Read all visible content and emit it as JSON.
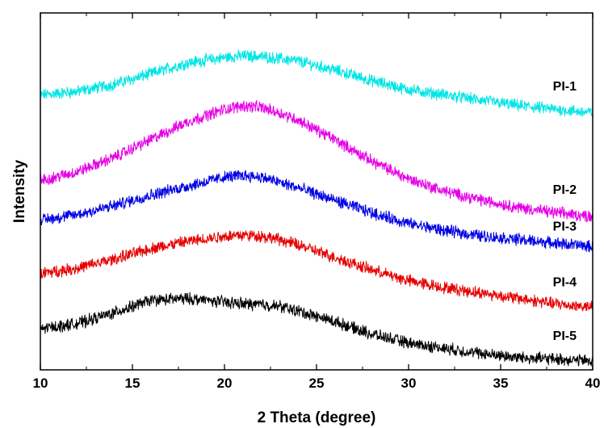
{
  "chart_data": {
    "type": "line",
    "xlabel": "2 Theta (degree)",
    "ylabel": "Intensity",
    "xlim": [
      10,
      40
    ],
    "xticks": [
      "10",
      "15",
      "20",
      "25",
      "30",
      "35",
      "40"
    ],
    "y_ticks_labeled": false,
    "grid": false,
    "legend": "inline labels at right end of each curve",
    "series": [
      {
        "name": "PI-1",
        "color": "#00e5e5",
        "x": [
          10,
          12,
          14,
          16,
          18,
          20,
          21,
          22,
          23,
          24,
          26,
          28,
          30,
          32,
          34,
          36,
          38,
          40
        ],
        "y": [
          0.77,
          0.78,
          0.8,
          0.83,
          0.86,
          0.875,
          0.88,
          0.878,
          0.872,
          0.865,
          0.84,
          0.81,
          0.785,
          0.77,
          0.755,
          0.74,
          0.73,
          0.72
        ]
      },
      {
        "name": "PI-2",
        "color": "#e600e6",
        "x": [
          10,
          12,
          14,
          16,
          18,
          20,
          21,
          22,
          23,
          24,
          26,
          28,
          30,
          32,
          34,
          36,
          38,
          40
        ],
        "y": [
          0.53,
          0.555,
          0.595,
          0.645,
          0.695,
          0.73,
          0.74,
          0.735,
          0.72,
          0.7,
          0.645,
          0.585,
          0.535,
          0.5,
          0.475,
          0.455,
          0.44,
          0.43
        ]
      },
      {
        "name": "PI-3",
        "color": "#0000e6",
        "x": [
          10,
          12,
          14,
          16,
          18,
          20,
          21,
          22,
          23,
          24,
          26,
          28,
          30,
          32,
          34,
          36,
          38,
          40
        ],
        "y": [
          0.42,
          0.435,
          0.46,
          0.49,
          0.515,
          0.54,
          0.545,
          0.54,
          0.525,
          0.51,
          0.475,
          0.44,
          0.41,
          0.39,
          0.375,
          0.365,
          0.355,
          0.345
        ]
      },
      {
        "name": "PI-4",
        "color": "#e60000",
        "x": [
          10,
          12,
          14,
          16,
          18,
          20,
          21,
          22,
          23,
          24,
          26,
          28,
          30,
          32,
          34,
          36,
          38,
          40
        ],
        "y": [
          0.27,
          0.285,
          0.31,
          0.34,
          0.36,
          0.375,
          0.378,
          0.375,
          0.365,
          0.35,
          0.315,
          0.28,
          0.25,
          0.23,
          0.215,
          0.2,
          0.185,
          0.175
        ]
      },
      {
        "name": "PI-5",
        "color": "#000000",
        "x": [
          10,
          12,
          14,
          16,
          18,
          20,
          21,
          22,
          23,
          24,
          26,
          28,
          30,
          32,
          34,
          36,
          38,
          40
        ],
        "y": [
          0.115,
          0.13,
          0.16,
          0.195,
          0.2,
          0.19,
          0.185,
          0.183,
          0.178,
          0.165,
          0.135,
          0.1,
          0.075,
          0.06,
          0.045,
          0.035,
          0.03,
          0.025
        ]
      }
    ]
  }
}
